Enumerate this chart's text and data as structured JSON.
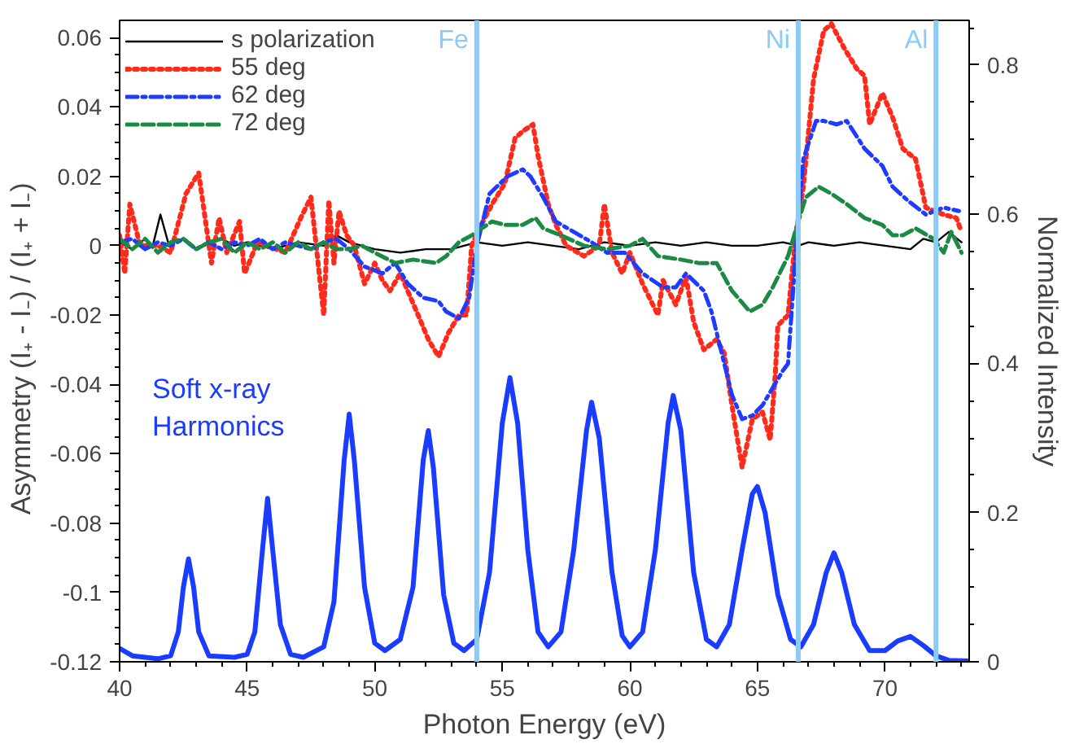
{
  "chart_data": {
    "type": "line",
    "xlabel": "Photon Energy (eV)",
    "ylabel": "Asymmetry   (I₊ - I₋) / (I₊ + I₋)",
    "y2label": "Normalized Intensity",
    "xlim": [
      40,
      73.3
    ],
    "xticks": [
      40,
      45,
      50,
      55,
      60,
      65,
      70
    ],
    "ylim": [
      -0.12,
      0.065
    ],
    "yticks": [
      -0.12,
      -0.1,
      -0.08,
      -0.06,
      -0.04,
      -0.02,
      0,
      0.02,
      0.04,
      0.06
    ],
    "y2lim": [
      0,
      0.86
    ],
    "y2ticks": [
      0,
      0.2,
      0.4,
      0.6,
      0.8
    ],
    "grid": false,
    "legend": "top left",
    "ref_lines": [
      {
        "axis": "x",
        "value": 54.0,
        "label": "Fe",
        "color": "#8ccbf5"
      },
      {
        "axis": "x",
        "value": 66.6,
        "label": "Ni",
        "color": "#8ccbf5"
      },
      {
        "axis": "x",
        "value": 72.0,
        "label": "Al",
        "color": "#8ccbf5"
      }
    ],
    "series": [
      {
        "name": "s polarization",
        "color": "#000000",
        "line_style": "solid",
        "x": [
          40,
          40.5,
          41,
          41.3,
          41.6,
          41.9,
          42.5,
          43,
          43.5,
          44,
          44.5,
          45,
          46,
          47,
          48,
          48.5,
          49,
          50,
          51,
          52,
          53,
          54,
          55,
          56,
          57,
          58,
          59,
          60,
          61,
          62,
          63,
          64,
          65,
          66,
          66.6,
          67,
          68,
          69,
          70,
          71,
          71.5,
          72,
          72.5,
          73
        ],
        "values": [
          0.001,
          -0.001,
          0.002,
          0,
          0.009,
          0.001,
          0.002,
          -0.001,
          0.001,
          0.002,
          0,
          0.001,
          -0.001,
          0.001,
          0,
          0.003,
          0.001,
          -0.001,
          -0.002,
          -0.001,
          -0.001,
          0.001,
          0,
          0.001,
          0,
          -0.001,
          0.001,
          0,
          0.001,
          0,
          0.001,
          0,
          0,
          0.001,
          0,
          0.001,
          0,
          0.001,
          0,
          -0.001,
          0.002,
          0.001,
          0.004,
          0.001
        ]
      },
      {
        "name": "55 deg",
        "color": "#ff2a1a",
        "line_style": "dotted",
        "x": [
          40,
          40.2,
          40.4,
          40.8,
          41.5,
          42,
          42.6,
          43.1,
          43.6,
          43.9,
          44.2,
          44.7,
          44.9,
          45.4,
          46.5,
          47.1,
          47.5,
          48.0,
          48.2,
          48.4,
          48.6,
          48.9,
          49.2,
          49.6,
          50.0,
          50.3,
          50.6,
          51.0,
          51.7,
          52.1,
          52.5,
          52.9,
          53.3,
          53.6,
          53.8,
          54.1,
          54.6,
          55.1,
          55.5,
          55.8,
          56.2,
          56.4,
          56.8,
          57.1,
          57.5,
          58.2,
          58.8,
          59.0,
          59.3,
          59.7,
          60.0,
          60.5,
          61.1,
          61.3,
          61.8,
          62.2,
          62.5,
          62.9,
          63.4,
          63.7,
          64.0,
          64.4,
          64.8,
          65.2,
          65.5,
          65.7,
          65.8,
          66.2,
          66.5,
          66.8,
          67.2,
          67.6,
          67.9,
          68.4,
          68.9,
          69.2,
          69.4,
          69.9,
          70.3,
          70.7,
          71.2,
          71.6,
          72.3,
          72.8,
          73.0
        ],
        "values": [
          0.003,
          -0.008,
          0.012,
          0,
          0,
          -0.002,
          0.015,
          0.021,
          -0.005,
          0.008,
          -0.002,
          0.007,
          -0.008,
          0.001,
          -0.002,
          0.008,
          0.014,
          -0.02,
          0.013,
          -0.005,
          0.01,
          0.003,
          0,
          -0.011,
          -0.005,
          -0.01,
          -0.013,
          -0.008,
          -0.02,
          -0.027,
          -0.032,
          -0.025,
          -0.02,
          -0.02,
          0,
          0.005,
          0.012,
          0.018,
          0.031,
          0.033,
          0.035,
          0.026,
          0.012,
          0.006,
          0,
          -0.003,
          0,
          0.012,
          -0.002,
          -0.008,
          -0.002,
          -0.011,
          -0.02,
          -0.01,
          -0.017,
          -0.009,
          -0.022,
          -0.03,
          -0.027,
          -0.031,
          -0.046,
          -0.064,
          -0.05,
          -0.048,
          -0.056,
          -0.037,
          -0.023,
          -0.02,
          0.003,
          0.017,
          0.048,
          0.062,
          0.064,
          0.057,
          0.051,
          0.049,
          0.035,
          0.044,
          0.037,
          0.028,
          0.025,
          0.011,
          0.009,
          0.008,
          0.004
        ]
      },
      {
        "name": "62 deg",
        "color": "#1e3cff",
        "line_style": "dashdot",
        "x": [
          40,
          40.5,
          41,
          41.5,
          42,
          42.5,
          43,
          43.5,
          44,
          44.5,
          45,
          45.5,
          46,
          46.5,
          47,
          47.5,
          48,
          48.5,
          49,
          49.6,
          50.3,
          50.8,
          51.3,
          51.9,
          52.5,
          52.8,
          53.3,
          53.7,
          54.0,
          54.5,
          55.2,
          55.5,
          55.8,
          56.1,
          56.6,
          57.1,
          57.8,
          58.5,
          59.1,
          59.8,
          60.5,
          60.9,
          61.3,
          61.8,
          62.2,
          62.9,
          63.2,
          63.6,
          64.0,
          64.4,
          64.8,
          65.2,
          65.6,
          66.0,
          66.2,
          66.5,
          66.8,
          67.3,
          67.6,
          68.1,
          68.5,
          69.2,
          69.9,
          70.3,
          70.9,
          71.6,
          72.3,
          72.9
        ],
        "values": [
          0.001,
          0.002,
          -0.001,
          0.001,
          0,
          0.002,
          -0.001,
          0.001,
          -0.001,
          0.001,
          0,
          0.002,
          -0.001,
          0.001,
          0,
          -0.001,
          0.001,
          0.002,
          -0.001,
          -0.006,
          -0.008,
          -0.005,
          -0.011,
          -0.015,
          -0.016,
          -0.019,
          -0.021,
          -0.015,
          0,
          0.015,
          0.02,
          0.021,
          0.022,
          0.02,
          0.014,
          0.007,
          0.004,
          0.001,
          -0.002,
          -0.002,
          -0.008,
          -0.01,
          -0.012,
          -0.012,
          -0.008,
          -0.013,
          -0.019,
          -0.031,
          -0.043,
          -0.05,
          -0.049,
          -0.046,
          -0.041,
          -0.036,
          -0.034,
          -0.002,
          0.025,
          0.036,
          0.036,
          0.035,
          0.036,
          0.028,
          0.023,
          0.017,
          0.013,
          0.009,
          0.011,
          0.01
        ]
      },
      {
        "name": "72 deg",
        "color": "#1a8a45",
        "line_style": "dashed",
        "x": [
          40,
          40.5,
          41,
          41.5,
          42,
          42.5,
          43,
          43.5,
          44,
          44.5,
          45,
          45.5,
          46,
          46.5,
          47,
          47.5,
          48,
          48.5,
          49,
          49.5,
          50,
          50.8,
          51.5,
          52.4,
          52.8,
          53.3,
          53.8,
          54.6,
          55.1,
          55.8,
          56.3,
          56.6,
          57.3,
          58.2,
          59.1,
          60.0,
          60.5,
          61.1,
          62.0,
          62.7,
          63.4,
          64.0,
          64.7,
          65.2,
          65.6,
          66.2,
          66.6,
          66.9,
          67.4,
          67.9,
          68.5,
          69.2,
          69.9,
          70.3,
          70.7,
          71.2,
          71.9,
          72.3,
          72.6,
          73.0
        ],
        "values": [
          0.002,
          -0.001,
          0.002,
          -0.002,
          0.001,
          0.002,
          -0.001,
          0.001,
          0.002,
          -0.002,
          0.001,
          -0.001,
          0.001,
          -0.002,
          0.001,
          -0.001,
          0.001,
          -0.001,
          -0.001,
          0,
          -0.002,
          -0.005,
          -0.004,
          -0.005,
          -0.003,
          0.001,
          0.003,
          0.007,
          0.006,
          0.006,
          0.008,
          0.005,
          0.003,
          0,
          -0.001,
          0,
          0.002,
          -0.003,
          -0.004,
          -0.005,
          -0.005,
          -0.013,
          -0.019,
          -0.017,
          -0.012,
          -0.003,
          0.007,
          0.014,
          0.017,
          0.015,
          0.012,
          0.008,
          0.006,
          0.003,
          0.003,
          0.005,
          0.002,
          -0.002,
          0.004,
          -0.002
        ]
      },
      {
        "name": "Soft x-ray Harmonics",
        "color": "#1a3cff",
        "line_style": "solid",
        "axis": "y2",
        "x": [
          40,
          40.5,
          41.5,
          42.0,
          42.3,
          42.5,
          42.7,
          42.9,
          43.1,
          43.5,
          44.5,
          45.0,
          45.3,
          45.6,
          45.8,
          46.0,
          46.3,
          46.7,
          47.2,
          48.0,
          48.4,
          48.8,
          49.0,
          49.2,
          49.6,
          50.0,
          50.4,
          51.0,
          51.5,
          51.9,
          52.1,
          52.3,
          52.7,
          53.1,
          53.5,
          54.0,
          54.5,
          55.0,
          55.3,
          55.6,
          56.0,
          56.4,
          56.8,
          57.3,
          57.8,
          58.3,
          58.5,
          58.8,
          59.3,
          59.7,
          60.0,
          60.5,
          61.0,
          61.5,
          61.7,
          62.0,
          62.5,
          63.0,
          63.4,
          63.9,
          64.4,
          64.8,
          65.0,
          65.3,
          65.8,
          66.3,
          66.7,
          67.2,
          67.7,
          68.0,
          68.3,
          68.8,
          69.4,
          70.0,
          70.5,
          71.0,
          71.5,
          72.0,
          72.5,
          73.3
        ],
        "values": [
          0.018,
          0.008,
          0.004,
          0.008,
          0.04,
          0.1,
          0.138,
          0.1,
          0.04,
          0.008,
          0.006,
          0.01,
          0.04,
          0.15,
          0.219,
          0.15,
          0.05,
          0.01,
          0.006,
          0.02,
          0.08,
          0.27,
          0.332,
          0.27,
          0.1,
          0.025,
          0.015,
          0.03,
          0.1,
          0.27,
          0.31,
          0.26,
          0.09,
          0.025,
          0.015,
          0.03,
          0.12,
          0.32,
          0.381,
          0.32,
          0.15,
          0.04,
          0.02,
          0.04,
          0.15,
          0.31,
          0.348,
          0.3,
          0.12,
          0.035,
          0.02,
          0.04,
          0.15,
          0.32,
          0.357,
          0.31,
          0.12,
          0.03,
          0.02,
          0.05,
          0.15,
          0.225,
          0.235,
          0.2,
          0.09,
          0.03,
          0.02,
          0.05,
          0.12,
          0.146,
          0.12,
          0.05,
          0.015,
          0.015,
          0.028,
          0.034,
          0.022,
          0.008,
          0.002,
          0.001
        ]
      }
    ]
  }
}
